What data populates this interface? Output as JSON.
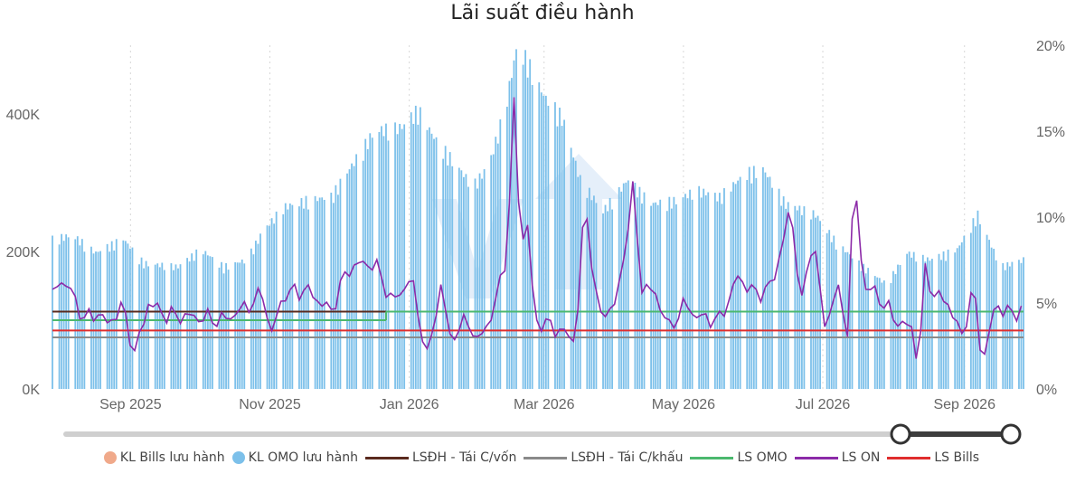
{
  "chart_data": {
    "type": "bar",
    "title": "Lãi suất điều hành",
    "x_tick_labels": [
      "Sep 2025",
      "Nov 2025",
      "Jan 2026",
      "Mar 2026",
      "May 2026",
      "Jul 2026",
      "Sep 2026"
    ],
    "x_range": [
      "2025-08-01",
      "2026-09-30"
    ],
    "y_left": {
      "ticks": [
        "0K",
        "200K",
        "400K"
      ],
      "range": [
        0,
        500000
      ]
    },
    "y_right": {
      "ticks": [
        "0%",
        "5%",
        "10%",
        "15%",
        "20%"
      ],
      "range": [
        0,
        20
      ]
    },
    "legend_position": "bottom",
    "legend": [
      {
        "name": "KL Bills lưu hành",
        "marker": "dot",
        "color": "#f0a98a"
      },
      {
        "name": "KL OMO lưu hành",
        "marker": "dot",
        "color": "#7cc0ea"
      },
      {
        "name": "LSĐH - Tái C/vốn",
        "marker": "line",
        "color": "#5a2a1e"
      },
      {
        "name": "LSĐH - Tái C/khấu",
        "marker": "line",
        "color": "#8a8a8a"
      },
      {
        "name": "LS OMO",
        "marker": "line",
        "color": "#4cb86e"
      },
      {
        "name": "LS ON",
        "marker": "line",
        "color": "#8c2aa8"
      },
      {
        "name": "LS Bills",
        "marker": "line",
        "color": "#e02d2d"
      }
    ],
    "series": [
      {
        "name": "KL OMO lưu hành",
        "axis": "left",
        "kind": "bar",
        "anchors": [
          [
            "2025-08-01",
            215000
          ],
          [
            "2025-08-10",
            220000
          ],
          [
            "2025-08-20",
            195000
          ],
          [
            "2025-09-01",
            215000
          ],
          [
            "2025-09-10",
            180000
          ],
          [
            "2025-09-25",
            175000
          ],
          [
            "2025-10-05",
            200000
          ],
          [
            "2025-10-15",
            175000
          ],
          [
            "2025-10-25",
            185000
          ],
          [
            "2025-11-01",
            225000
          ],
          [
            "2025-11-10",
            260000
          ],
          [
            "2025-11-20",
            270000
          ],
          [
            "2025-12-01",
            275000
          ],
          [
            "2025-12-10",
            320000
          ],
          [
            "2025-12-20",
            370000
          ],
          [
            "2026-01-01",
            375000
          ],
          [
            "2026-01-08",
            400000
          ],
          [
            "2026-01-15",
            360000
          ],
          [
            "2026-01-25",
            320000
          ],
          [
            "2026-02-01",
            290000
          ],
          [
            "2026-02-08",
            320000
          ],
          [
            "2026-02-15",
            400000
          ],
          [
            "2026-02-20",
            485000
          ],
          [
            "2026-02-24",
            475000
          ],
          [
            "2026-03-04",
            420000
          ],
          [
            "2026-03-12",
            390000
          ],
          [
            "2026-03-20",
            300000
          ],
          [
            "2026-03-30",
            255000
          ],
          [
            "2026-04-10",
            300000
          ],
          [
            "2026-04-20",
            265000
          ],
          [
            "2026-05-01",
            270000
          ],
          [
            "2026-05-10",
            285000
          ],
          [
            "2026-05-20",
            275000
          ],
          [
            "2026-06-01",
            310000
          ],
          [
            "2026-06-08",
            315000
          ],
          [
            "2026-06-18",
            265000
          ],
          [
            "2026-07-01",
            250000
          ],
          [
            "2026-07-10",
            210000
          ],
          [
            "2026-07-20",
            180000
          ],
          [
            "2026-08-01",
            150000
          ],
          [
            "2026-08-10",
            195000
          ],
          [
            "2026-08-20",
            185000
          ],
          [
            "2026-09-01",
            200000
          ],
          [
            "2026-09-10",
            250000
          ],
          [
            "2026-09-20",
            175000
          ],
          [
            "2026-09-30",
            185000
          ]
        ]
      },
      {
        "name": "LS ON",
        "axis": "right",
        "kind": "line",
        "anchors": [
          [
            "2025-08-01",
            5.3
          ],
          [
            "2025-08-04",
            6.5
          ],
          [
            "2025-08-10",
            5.5
          ],
          [
            "2025-08-15",
            4.0
          ],
          [
            "2025-08-20",
            4.5
          ],
          [
            "2025-08-25",
            3.8
          ],
          [
            "2025-09-01",
            4.8
          ],
          [
            "2025-09-06",
            2.0
          ],
          [
            "2025-09-12",
            5.0
          ],
          [
            "2025-09-20",
            4.3
          ],
          [
            "2025-10-01",
            4.2
          ],
          [
            "2025-10-15",
            4.0
          ],
          [
            "2025-10-25",
            4.8
          ],
          [
            "2025-11-01",
            5.5
          ],
          [
            "2025-11-05",
            3.2
          ],
          [
            "2025-11-10",
            5.5
          ],
          [
            "2025-11-20",
            5.8
          ],
          [
            "2025-12-01",
            4.5
          ],
          [
            "2025-12-05",
            6.0
          ],
          [
            "2025-12-10",
            7.2
          ],
          [
            "2025-12-20",
            7.3
          ],
          [
            "2025-12-28",
            5.0
          ],
          [
            "2026-01-05",
            6.5
          ],
          [
            "2026-01-12",
            1.8
          ],
          [
            "2026-01-18",
            6.0
          ],
          [
            "2026-01-22",
            3.0
          ],
          [
            "2026-01-30",
            4.0
          ],
          [
            "2026-02-03",
            2.7
          ],
          [
            "2026-02-10",
            4.5
          ],
          [
            "2026-02-16",
            8.0
          ],
          [
            "2026-02-19",
            16.5
          ],
          [
            "2026-02-22",
            8.5
          ],
          [
            "2026-02-25",
            9.5
          ],
          [
            "2026-02-28",
            4.0
          ],
          [
            "2026-03-10",
            3.5
          ],
          [
            "2026-03-18",
            2.8
          ],
          [
            "2026-03-22",
            11.0
          ],
          [
            "2026-03-28",
            4.2
          ],
          [
            "2026-04-05",
            5.0
          ],
          [
            "2026-04-12",
            11.5
          ],
          [
            "2026-04-16",
            6.0
          ],
          [
            "2026-04-22",
            5.5
          ],
          [
            "2026-04-28",
            3.5
          ],
          [
            "2026-05-05",
            5.0
          ],
          [
            "2026-05-10",
            4.2
          ],
          [
            "2026-05-20",
            4.0
          ],
          [
            "2026-05-28",
            6.5
          ],
          [
            "2026-06-05",
            5.5
          ],
          [
            "2026-06-12",
            6.0
          ],
          [
            "2026-06-20",
            10.5
          ],
          [
            "2026-06-25",
            5.0
          ],
          [
            "2026-06-30",
            9.0
          ],
          [
            "2026-07-05",
            3.5
          ],
          [
            "2026-07-10",
            6.0
          ],
          [
            "2026-07-15",
            3.5
          ],
          [
            "2026-07-18",
            12.5
          ],
          [
            "2026-07-22",
            6.0
          ],
          [
            "2026-07-28",
            5.5
          ],
          [
            "2026-08-05",
            4.0
          ],
          [
            "2026-08-12",
            3.5
          ],
          [
            "2026-08-15",
            1.5
          ],
          [
            "2026-08-18",
            6.8
          ],
          [
            "2026-08-22",
            5.5
          ],
          [
            "2026-08-28",
            5.0
          ],
          [
            "2026-09-03",
            3.0
          ],
          [
            "2026-09-08",
            6.0
          ],
          [
            "2026-09-12",
            1.5
          ],
          [
            "2026-09-18",
            5.0
          ],
          [
            "2026-09-24",
            4.3
          ],
          [
            "2026-09-30",
            4.7
          ]
        ]
      },
      {
        "name": "LSĐH - Tái C/vốn",
        "axis": "right",
        "kind": "step",
        "segments": [
          [
            "2025-08-01",
            "2025-12-25",
            4.5
          ]
        ]
      },
      {
        "name": "LS OMO",
        "axis": "right",
        "kind": "step",
        "segments": [
          [
            "2025-08-01",
            "2025-12-25",
            4.0
          ],
          [
            "2025-12-25",
            "2026-09-30",
            4.5
          ]
        ]
      },
      {
        "name": "LSĐH - Tái C/khấu",
        "axis": "right",
        "kind": "step",
        "segments": [
          [
            "2025-08-01",
            "2026-09-30",
            3.0
          ]
        ]
      },
      {
        "name": "LS Bills",
        "axis": "right",
        "kind": "step",
        "segments": [
          [
            "2025-08-01",
            "2026-09-30",
            3.4
          ]
        ]
      }
    ]
  }
}
